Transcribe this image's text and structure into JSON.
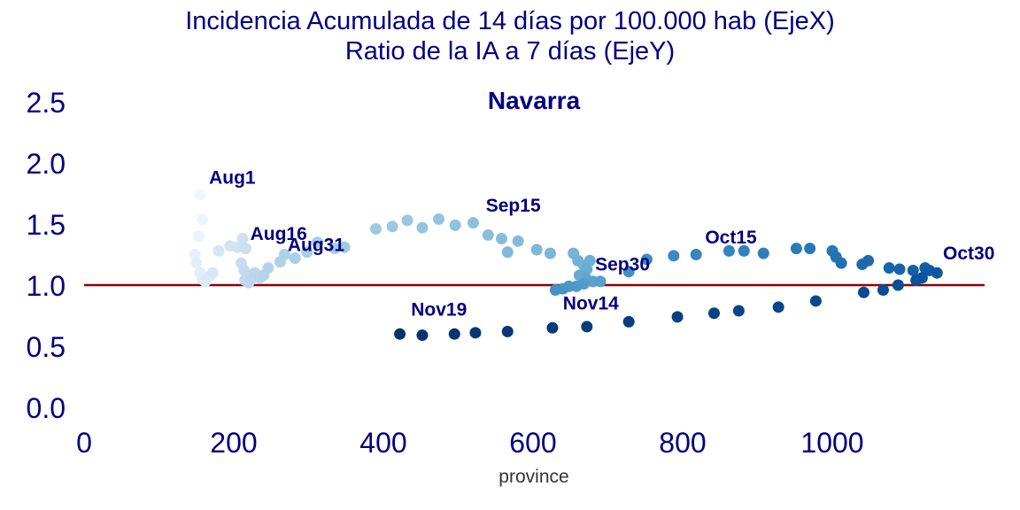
{
  "chart_data": {
    "type": "scatter",
    "title_line1": "Incidencia Acumulada de 14 días por 100.000 hab (EjeX)",
    "title_line2": "Ratio de la IA a 7 días (EjeY)",
    "subtitle": "Navarra",
    "xlabel": "province",
    "ylabel": "",
    "xlim": [
      0,
      1200
    ],
    "ylim": [
      0,
      2.6
    ],
    "x_ticks": [
      0,
      200,
      400,
      600,
      800,
      1000
    ],
    "y_ticks": [
      "0.0",
      "0.5",
      "1.0",
      "1.5",
      "2.0",
      "2.5"
    ],
    "y_tick_values": [
      0,
      0.5,
      1.0,
      1.5,
      2.0,
      2.5
    ],
    "grid": false,
    "reference_line": {
      "y": 1.0,
      "color": "#8b0000"
    },
    "colormap": "blues (light = early, dark = late)",
    "points": [
      {
        "x": 155,
        "y": 1.74
      },
      {
        "x": 158,
        "y": 1.54
      },
      {
        "x": 153,
        "y": 1.4
      },
      {
        "x": 148,
        "y": 1.25
      },
      {
        "x": 150,
        "y": 1.18
      },
      {
        "x": 155,
        "y": 1.1
      },
      {
        "x": 158,
        "y": 1.05
      },
      {
        "x": 162,
        "y": 1.03
      },
      {
        "x": 167,
        "y": 1.07
      },
      {
        "x": 172,
        "y": 1.1
      },
      {
        "x": 180,
        "y": 1.28
      },
      {
        "x": 195,
        "y": 1.32
      },
      {
        "x": 205,
        "y": 1.31
      },
      {
        "x": 212,
        "y": 1.38
      },
      {
        "x": 216,
        "y": 1.3
      },
      {
        "x": 210,
        "y": 1.18
      },
      {
        "x": 214,
        "y": 1.12
      },
      {
        "x": 218,
        "y": 1.08
      },
      {
        "x": 215,
        "y": 1.04
      },
      {
        "x": 220,
        "y": 1.02
      },
      {
        "x": 225,
        "y": 1.06
      },
      {
        "x": 228,
        "y": 1.1
      },
      {
        "x": 235,
        "y": 1.06
      },
      {
        "x": 240,
        "y": 1.08
      },
      {
        "x": 246,
        "y": 1.14
      },
      {
        "x": 262,
        "y": 1.19
      },
      {
        "x": 268,
        "y": 1.25
      },
      {
        "x": 282,
        "y": 1.22
      },
      {
        "x": 298,
        "y": 1.27
      },
      {
        "x": 312,
        "y": 1.35
      },
      {
        "x": 335,
        "y": 1.3
      },
      {
        "x": 348,
        "y": 1.31
      },
      {
        "x": 390,
        "y": 1.46
      },
      {
        "x": 412,
        "y": 1.48
      },
      {
        "x": 432,
        "y": 1.53
      },
      {
        "x": 452,
        "y": 1.47
      },
      {
        "x": 474,
        "y": 1.54
      },
      {
        "x": 496,
        "y": 1.49
      },
      {
        "x": 520,
        "y": 1.51
      },
      {
        "x": 540,
        "y": 1.41
      },
      {
        "x": 558,
        "y": 1.38
      },
      {
        "x": 580,
        "y": 1.36
      },
      {
        "x": 566,
        "y": 1.27
      },
      {
        "x": 605,
        "y": 1.29
      },
      {
        "x": 623,
        "y": 1.26
      },
      {
        "x": 654,
        "y": 1.26
      },
      {
        "x": 660,
        "y": 1.2
      },
      {
        "x": 668,
        "y": 1.16
      },
      {
        "x": 676,
        "y": 1.2
      },
      {
        "x": 672,
        "y": 1.13
      },
      {
        "x": 662,
        "y": 1.08
      },
      {
        "x": 670,
        "y": 1.06
      },
      {
        "x": 672,
        "y": 1.04
      },
      {
        "x": 680,
        "y": 1.03
      },
      {
        "x": 690,
        "y": 1.03
      },
      {
        "x": 668,
        "y": 1.01
      },
      {
        "x": 658,
        "y": 0.99
      },
      {
        "x": 648,
        "y": 0.99
      },
      {
        "x": 640,
        "y": 0.97
      },
      {
        "x": 630,
        "y": 0.96
      },
      {
        "x": 728,
        "y": 1.11
      },
      {
        "x": 752,
        "y": 1.21
      },
      {
        "x": 788,
        "y": 1.24
      },
      {
        "x": 818,
        "y": 1.25
      },
      {
        "x": 862,
        "y": 1.28
      },
      {
        "x": 882,
        "y": 1.28
      },
      {
        "x": 908,
        "y": 1.26
      },
      {
        "x": 952,
        "y": 1.3
      },
      {
        "x": 970,
        "y": 1.3
      },
      {
        "x": 1000,
        "y": 1.28
      },
      {
        "x": 1005,
        "y": 1.23
      },
      {
        "x": 1012,
        "y": 1.18
      },
      {
        "x": 1048,
        "y": 1.2
      },
      {
        "x": 1040,
        "y": 1.17
      },
      {
        "x": 1076,
        "y": 1.14
      },
      {
        "x": 1090,
        "y": 1.13
      },
      {
        "x": 1108,
        "y": 1.12
      },
      {
        "x": 1124,
        "y": 1.14
      },
      {
        "x": 1130,
        "y": 1.12
      },
      {
        "x": 1140,
        "y": 1.1
      },
      {
        "x": 1120,
        "y": 1.06
      },
      {
        "x": 1112,
        "y": 1.04
      },
      {
        "x": 1088,
        "y": 1.0
      },
      {
        "x": 1068,
        "y": 0.96
      },
      {
        "x": 1042,
        "y": 0.94
      },
      {
        "x": 978,
        "y": 0.87
      },
      {
        "x": 928,
        "y": 0.82
      },
      {
        "x": 875,
        "y": 0.79
      },
      {
        "x": 842,
        "y": 0.77
      },
      {
        "x": 793,
        "y": 0.74
      },
      {
        "x": 728,
        "y": 0.7
      },
      {
        "x": 672,
        "y": 0.66
      },
      {
        "x": 626,
        "y": 0.65
      },
      {
        "x": 566,
        "y": 0.62
      },
      {
        "x": 523,
        "y": 0.61
      },
      {
        "x": 495,
        "y": 0.6
      },
      {
        "x": 452,
        "y": 0.59
      },
      {
        "x": 422,
        "y": 0.6
      }
    ],
    "annotations": [
      {
        "text": "Aug1",
        "x": 167,
        "y": 1.83
      },
      {
        "text": "Aug16",
        "x": 222,
        "y": 1.37
      },
      {
        "text": "Aug31",
        "x": 272,
        "y": 1.28
      },
      {
        "text": "Sep15",
        "x": 537,
        "y": 1.6
      },
      {
        "text": "Sep30",
        "x": 683,
        "y": 1.12
      },
      {
        "text": "Oct15",
        "x": 830,
        "y": 1.34
      },
      {
        "text": "Oct30",
        "x": 1148,
        "y": 1.21
      },
      {
        "text": "Nov14",
        "x": 640,
        "y": 0.8
      },
      {
        "text": "Nov19",
        "x": 437,
        "y": 0.75
      }
    ]
  }
}
